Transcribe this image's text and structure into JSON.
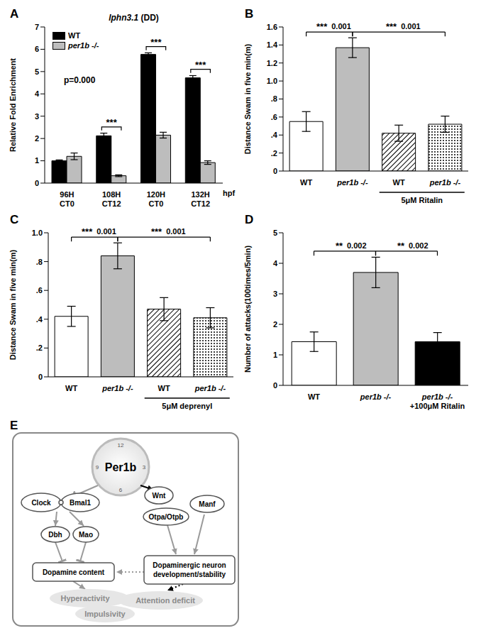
{
  "chart_data": [
    {
      "panel": "A",
      "type": "bar",
      "title": "lphn3.1 (DD)",
      "categories": [
        "96H\nCT0",
        "108H\nCT12",
        "120H\nCT0",
        "132H\nCT12"
      ],
      "x_label": "hpf",
      "y_label": "Relative Fold Enrichment",
      "series": [
        {
          "name": "WT",
          "color": "#000000",
          "values": [
            1.0,
            2.12,
            5.77,
            4.72
          ],
          "errors": [
            0.04,
            0.12,
            0.07,
            0.1
          ]
        },
        {
          "name": "per1b -/-",
          "color": "#bdbdbd",
          "values": [
            1.2,
            0.33,
            2.15,
            0.92
          ],
          "errors": [
            0.15,
            0.04,
            0.13,
            0.08
          ]
        }
      ],
      "ylim": [
        0,
        7
      ],
      "yticks": [
        0,
        1,
        2,
        3,
        4,
        5,
        6,
        7
      ],
      "annotations": [
        "p=0.000"
      ],
      "significance": [
        {
          "category": 1,
          "label": "***"
        },
        {
          "category": 2,
          "label": "***"
        },
        {
          "category": 3,
          "label": "***"
        }
      ]
    },
    {
      "panel": "B",
      "type": "bar",
      "categories": [
        "WT",
        "per1b -/-",
        "WT",
        "per1b -/-"
      ],
      "values": [
        0.55,
        1.37,
        0.42,
        0.52
      ],
      "errors": [
        0.11,
        0.11,
        0.09,
        0.09
      ],
      "colors": [
        "#ffffff",
        "#bdbdbd",
        "#ffffff",
        "#ffffff"
      ],
      "y_label": "Distance Swam in five min(m)",
      "ylim": [
        0,
        1.6
      ],
      "yticks": [
        0,
        {
          "value": 0.2,
          "label": ".2"
        },
        {
          "value": 0.4,
          "label": ".4"
        },
        {
          "value": 0.6,
          "label": ".6"
        },
        {
          "value": 0.8,
          "label": ".8"
        },
        {
          "value": 1,
          "label": "1.0"
        },
        1.2,
        1.4,
        1.6
      ],
      "treatment": {
        "label": "5μM Ritalin",
        "categories": [
          2,
          3
        ]
      },
      "significance": [
        {
          "from": 0,
          "to": 1,
          "label": "***",
          "p": 0.001
        },
        {
          "from": 1,
          "to": 3,
          "label": "***",
          "p": 0.001
        }
      ]
    },
    {
      "panel": "C",
      "type": "bar",
      "categories": [
        "WT",
        "per1b -/-",
        "WT",
        "per1b -/-"
      ],
      "values": [
        0.42,
        0.84,
        0.47,
        0.41
      ],
      "errors": [
        0.07,
        0.09,
        0.08,
        0.07
      ],
      "colors": [
        "#ffffff",
        "#bdbdbd",
        "#ffffff",
        "#ffffff"
      ],
      "y_label": "Distance Swam in five min(m)",
      "ylim": [
        0,
        1
      ],
      "yticks": [
        0,
        {
          "value": 0.2,
          "label": ".2"
        },
        {
          "value": 0.4,
          "label": ".4"
        },
        {
          "value": 0.6,
          "label": ".6"
        },
        {
          "value": 0.8,
          "label": ".8"
        },
        {
          "value": 1,
          "label": "1.0"
        }
      ],
      "treatment": {
        "label": "5μM deprenyl",
        "categories": [
          2,
          3
        ]
      },
      "significance": [
        {
          "from": 0,
          "to": 1,
          "label": "***",
          "p": 0.001
        },
        {
          "from": 1,
          "to": 3,
          "label": "***",
          "p": 0.001
        }
      ]
    },
    {
      "panel": "D",
      "type": "bar",
      "categories": [
        "WT",
        "per1b -/-",
        "per1b -/-\n+100μM Ritalin"
      ],
      "values": [
        1.43,
        3.7,
        1.43
      ],
      "errors": [
        0.32,
        0.5,
        0.3
      ],
      "colors": [
        "#ffffff",
        "#bdbdbd",
        "#000000"
      ],
      "y_label": "Number of attacks(100times/5min)",
      "ylim": [
        0,
        5
      ],
      "yticks": [
        0,
        1,
        2,
        3,
        4,
        5
      ],
      "significance": [
        {
          "from": 0,
          "to": 1,
          "label": "**",
          "p": 0.002
        },
        {
          "from": 1,
          "to": 2,
          "label": "**",
          "p": 0.002
        }
      ]
    }
  ],
  "diagram": {
    "panel": "E",
    "center": "Per1b",
    "clock_numbers": [
      12,
      3,
      6,
      9
    ],
    "nodes": {
      "clock": "Clock",
      "bmal": "Bmal1",
      "dbh": "Dbh",
      "mao": "Mao",
      "dopamine": "Dopamine content",
      "wnt": "Wnt",
      "otp": "Otpa/Otpb",
      "manf": "Manf",
      "neuron": "Dopaminergic neuron\ndevelopment/stability"
    },
    "outcomes": [
      "Hyperactivity",
      "Attention deficit",
      "Impulsivity"
    ]
  }
}
